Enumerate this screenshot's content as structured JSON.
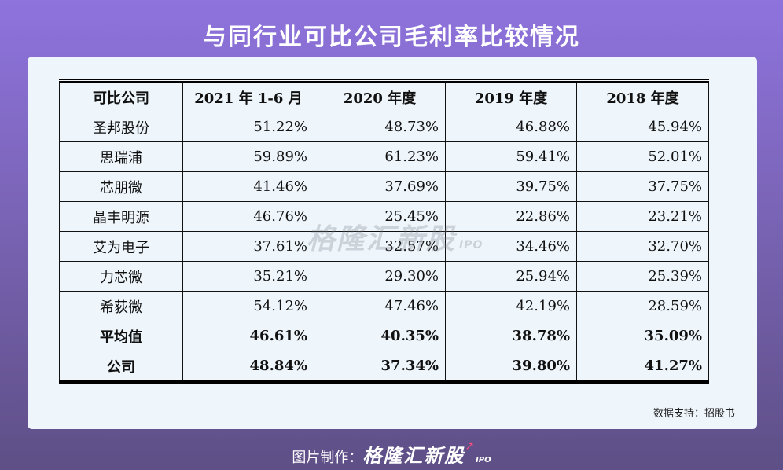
{
  "title": "与同行业可比公司毛利率比较情况",
  "table": {
    "headers": [
      "可比公司",
      "2021 年 1-6 月",
      "2020 年度",
      "2019 年度",
      "2018 年度"
    ],
    "rows": [
      {
        "name": "圣邦股份",
        "v": [
          "51.22%",
          "48.73%",
          "46.88%",
          "45.94%"
        ]
      },
      {
        "name": "思瑞浦",
        "v": [
          "59.89%",
          "61.23%",
          "59.41%",
          "52.01%"
        ]
      },
      {
        "name": "芯朋微",
        "v": [
          "41.46%",
          "37.69%",
          "39.75%",
          "37.75%"
        ]
      },
      {
        "name": "晶丰明源",
        "v": [
          "46.76%",
          "25.45%",
          "22.86%",
          "23.21%"
        ]
      },
      {
        "name": "艾为电子",
        "v": [
          "37.61%",
          "32.57%",
          "34.46%",
          "32.70%"
        ]
      },
      {
        "name": "力芯微",
        "v": [
          "35.21%",
          "29.30%",
          "25.94%",
          "25.39%"
        ]
      },
      {
        "name": "希荻微",
        "v": [
          "54.12%",
          "47.46%",
          "42.19%",
          "28.59%"
        ]
      },
      {
        "name": "平均值",
        "v": [
          "46.61%",
          "40.35%",
          "38.78%",
          "35.09%"
        ]
      },
      {
        "name": "公司",
        "v": [
          "48.84%",
          "37.34%",
          "39.80%",
          "41.27%"
        ]
      }
    ]
  },
  "watermark": {
    "brand": "格隆汇新股",
    "suffix": "IPO"
  },
  "source": "数据支持：招股书",
  "footer": {
    "label": "图片制作：",
    "brand": "格隆汇新股",
    "suffix": "IPO"
  }
}
